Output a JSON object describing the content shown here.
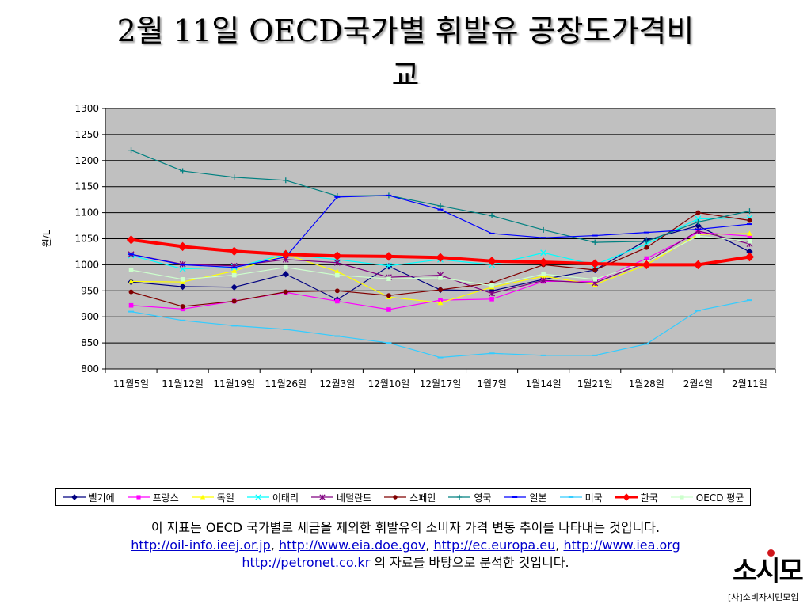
{
  "slide": {
    "title_line1": "2월 11일 OECD국가별 휘발유 공장도가격비",
    "title_line2": "교",
    "caption_line1": "이 지표는 OECD 국가별로 세금을 제외한 휘발유의 소비자 가격 변동 추이를 나타내는 것입니다.",
    "links": [
      "http://oil-info.ieej.or.jp",
      "http://www.eia.doe.gov",
      "http://ec.europa.eu",
      "http://www.iea.org",
      "http://petronet.co.kr"
    ],
    "caption_tail": " 의 자료를 바탕으로 분석한 것입니다.",
    "logo_text": "소시모",
    "logo_sub": "[사]소비자시민모임"
  },
  "chart_data": {
    "type": "line",
    "ylabel": "원/L",
    "ylim": [
      800,
      1300
    ],
    "yticks": [
      800,
      850,
      900,
      950,
      1000,
      1050,
      1100,
      1150,
      1200,
      1250,
      1300
    ],
    "categories": [
      "11월5일",
      "11월12일",
      "11월19일",
      "11월26일",
      "12월3일",
      "12월10일",
      "12월17일",
      "1월7일",
      "1월14일",
      "1월21일",
      "1월28일",
      "2월4일",
      "2월11일"
    ],
    "plot_bg": "#c0c0c0",
    "series": [
      {
        "name": "벨기에",
        "color": "#000080",
        "marker": "diamond",
        "values": [
          967,
          958,
          957,
          982,
          933,
          997,
          952,
          950,
          972,
          990,
          1047,
          1075,
          1025
        ]
      },
      {
        "name": "프랑스",
        "color": "#ff00ff",
        "marker": "square",
        "values": [
          922,
          915,
          930,
          947,
          930,
          914,
          932,
          934,
          968,
          968,
          1012,
          1062,
          1055
        ]
      },
      {
        "name": "독일",
        "color": "#ffff00",
        "marker": "triangle",
        "values": [
          968,
          967,
          988,
          1020,
          987,
          938,
          927,
          957,
          978,
          962,
          1000,
          1058,
          1060
        ]
      },
      {
        "name": "이태리",
        "color": "#00ffff",
        "marker": "x",
        "values": [
          1018,
          992,
          995,
          1020,
          1010,
          998,
          1010,
          1000,
          1023,
          1000,
          1040,
          1088,
          1090
        ]
      },
      {
        "name": "네덜란드",
        "color": "#800080",
        "marker": "star",
        "values": [
          1020,
          1001,
          998,
          1010,
          1004,
          976,
          980,
          945,
          970,
          965,
          1005,
          1065,
          1040
        ]
      },
      {
        "name": "스페인",
        "color": "#800000",
        "marker": "circle",
        "values": [
          948,
          920,
          930,
          948,
          950,
          941,
          952,
          965,
          1000,
          990,
          1033,
          1100,
          1085
        ]
      },
      {
        "name": "영국",
        "color": "#008080",
        "marker": "plus",
        "values": [
          1220,
          1180,
          1168,
          1162,
          1132,
          1133,
          1113,
          1094,
          1067,
          1043,
          1045,
          1082,
          1103
        ]
      },
      {
        "name": "일본",
        "color": "#0000ff",
        "marker": "dash",
        "values": [
          1020,
          1000,
          995,
          1015,
          1130,
          1133,
          1106,
          1060,
          1052,
          1056,
          1062,
          1068,
          1078
        ]
      },
      {
        "name": "미국",
        "color": "#33ccff",
        "marker": "dash",
        "values": [
          910,
          893,
          883,
          876,
          863,
          850,
          822,
          830,
          826,
          826,
          848,
          912,
          932
        ]
      },
      {
        "name": "한국",
        "color": "#ff0000",
        "marker": "diamond",
        "bold": true,
        "values": [
          1048,
          1035,
          1026,
          1020,
          1017,
          1016,
          1014,
          1007,
          1005,
          1002,
          1000,
          1000,
          1015
        ]
      },
      {
        "name": "OECD 평균",
        "color": "#ccffcc",
        "marker": "square",
        "values": [
          990,
          972,
          980,
          995,
          980,
          973,
          975,
          960,
          982,
          972,
          1005,
          1055,
          1045
        ]
      }
    ]
  }
}
